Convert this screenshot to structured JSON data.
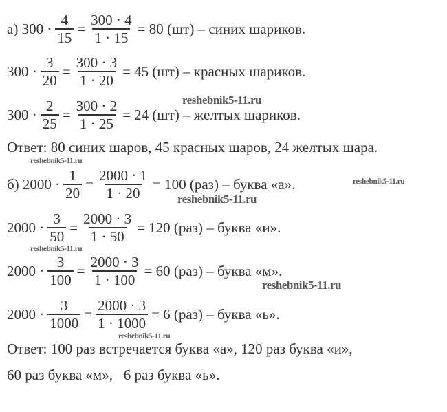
{
  "equations": [
    {
      "prefix": "а) 300 ·",
      "num1": "4",
      "den1": "15",
      "num2": "300 · 4",
      "den2": "1 · 15",
      "result": "= 80 (шт) – синих шариков."
    },
    {
      "prefix": "300 ·",
      "num1": "3",
      "den1": "20",
      "num2": "300 · 3",
      "den2": "1 · 20",
      "result": "= 45 (шт) – красных шариков."
    },
    {
      "prefix": "300 ·",
      "num1": "2",
      "den1": "25",
      "num2": "300 · 2",
      "den2": "1 · 25",
      "result": "= 24 (шт) – желтых шариков."
    },
    {
      "prefix": "б) 2000 ·",
      "num1": "1",
      "den1": "20",
      "num2": "2000 · 1",
      "den2": "1 · 20",
      "result": "= 100 (раз) – буква «а»."
    },
    {
      "prefix": "2000 ·",
      "num1": "3",
      "den1": "50",
      "num2": "2000 · 3",
      "den2": "1 · 50",
      "result": "= 120 (раз) – буква «и»."
    },
    {
      "prefix": "2000 ·",
      "num1": "3",
      "den1": "100",
      "num2": "2000 · 3",
      "den2": "1 · 100",
      "result": "= 60 (раз) – буква «м»."
    },
    {
      "prefix": "2000 ·",
      "num1": "3",
      "den1": "1000",
      "num2": "2000 · 3",
      "den2": "1 · 1000",
      "result": "= 6 (раз) – буква «ь»."
    }
  ],
  "answers": {
    "a": "Ответ: 80 синих шаров, 45 красных шаров, 24 желтых шара.",
    "b_line1": "Ответ: 100 раз встречается буква «а», 120 раз буква «и»,",
    "b_line2": "60 раз буква «м»,   6 раз буква «ь»."
  },
  "watermark": "reshebnik5-11.ru"
}
